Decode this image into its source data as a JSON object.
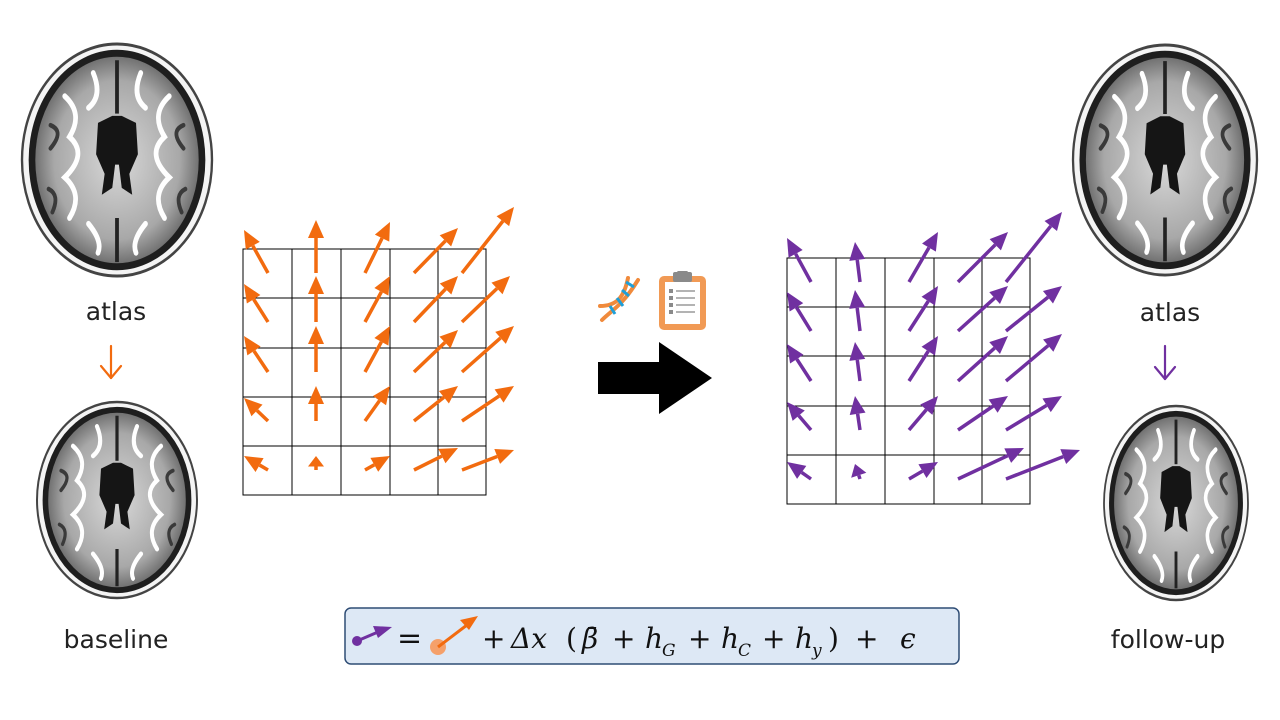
{
  "labels": {
    "left_atlas": "atlas",
    "baseline": "baseline",
    "right_atlas": "atlas",
    "follow_up": "follow-up"
  },
  "equation": {
    "eq": "=",
    "plus1": "+",
    "delta_x": "Δx",
    "open_paren": "(",
    "beta_bar": "β̄",
    "plus2": "+",
    "h": "h",
    "sub_g": "G",
    "plus3": "+",
    "sub_c": "C",
    "plus4": "+",
    "sub_y": "y",
    "close_paren": ")",
    "plus5": "+",
    "epsilon": "ϵ"
  },
  "colors": {
    "baseline_field": "#f26b0f",
    "followup_field": "#7030a0",
    "grid": "#000000",
    "transition_arrow": "#000000",
    "equation_box_fill": "#dde8f5",
    "equation_box_border": "#2f4d75",
    "atlas_to_baseline_arrow": "#f26b0f",
    "atlas_to_followup_arrow": "#7030a0"
  },
  "icons": {
    "covariate_1": "dna-icon",
    "covariate_2": "clipboard-icon",
    "transition": "right-arrow-icon",
    "brain": "brain-mri-icon"
  }
}
